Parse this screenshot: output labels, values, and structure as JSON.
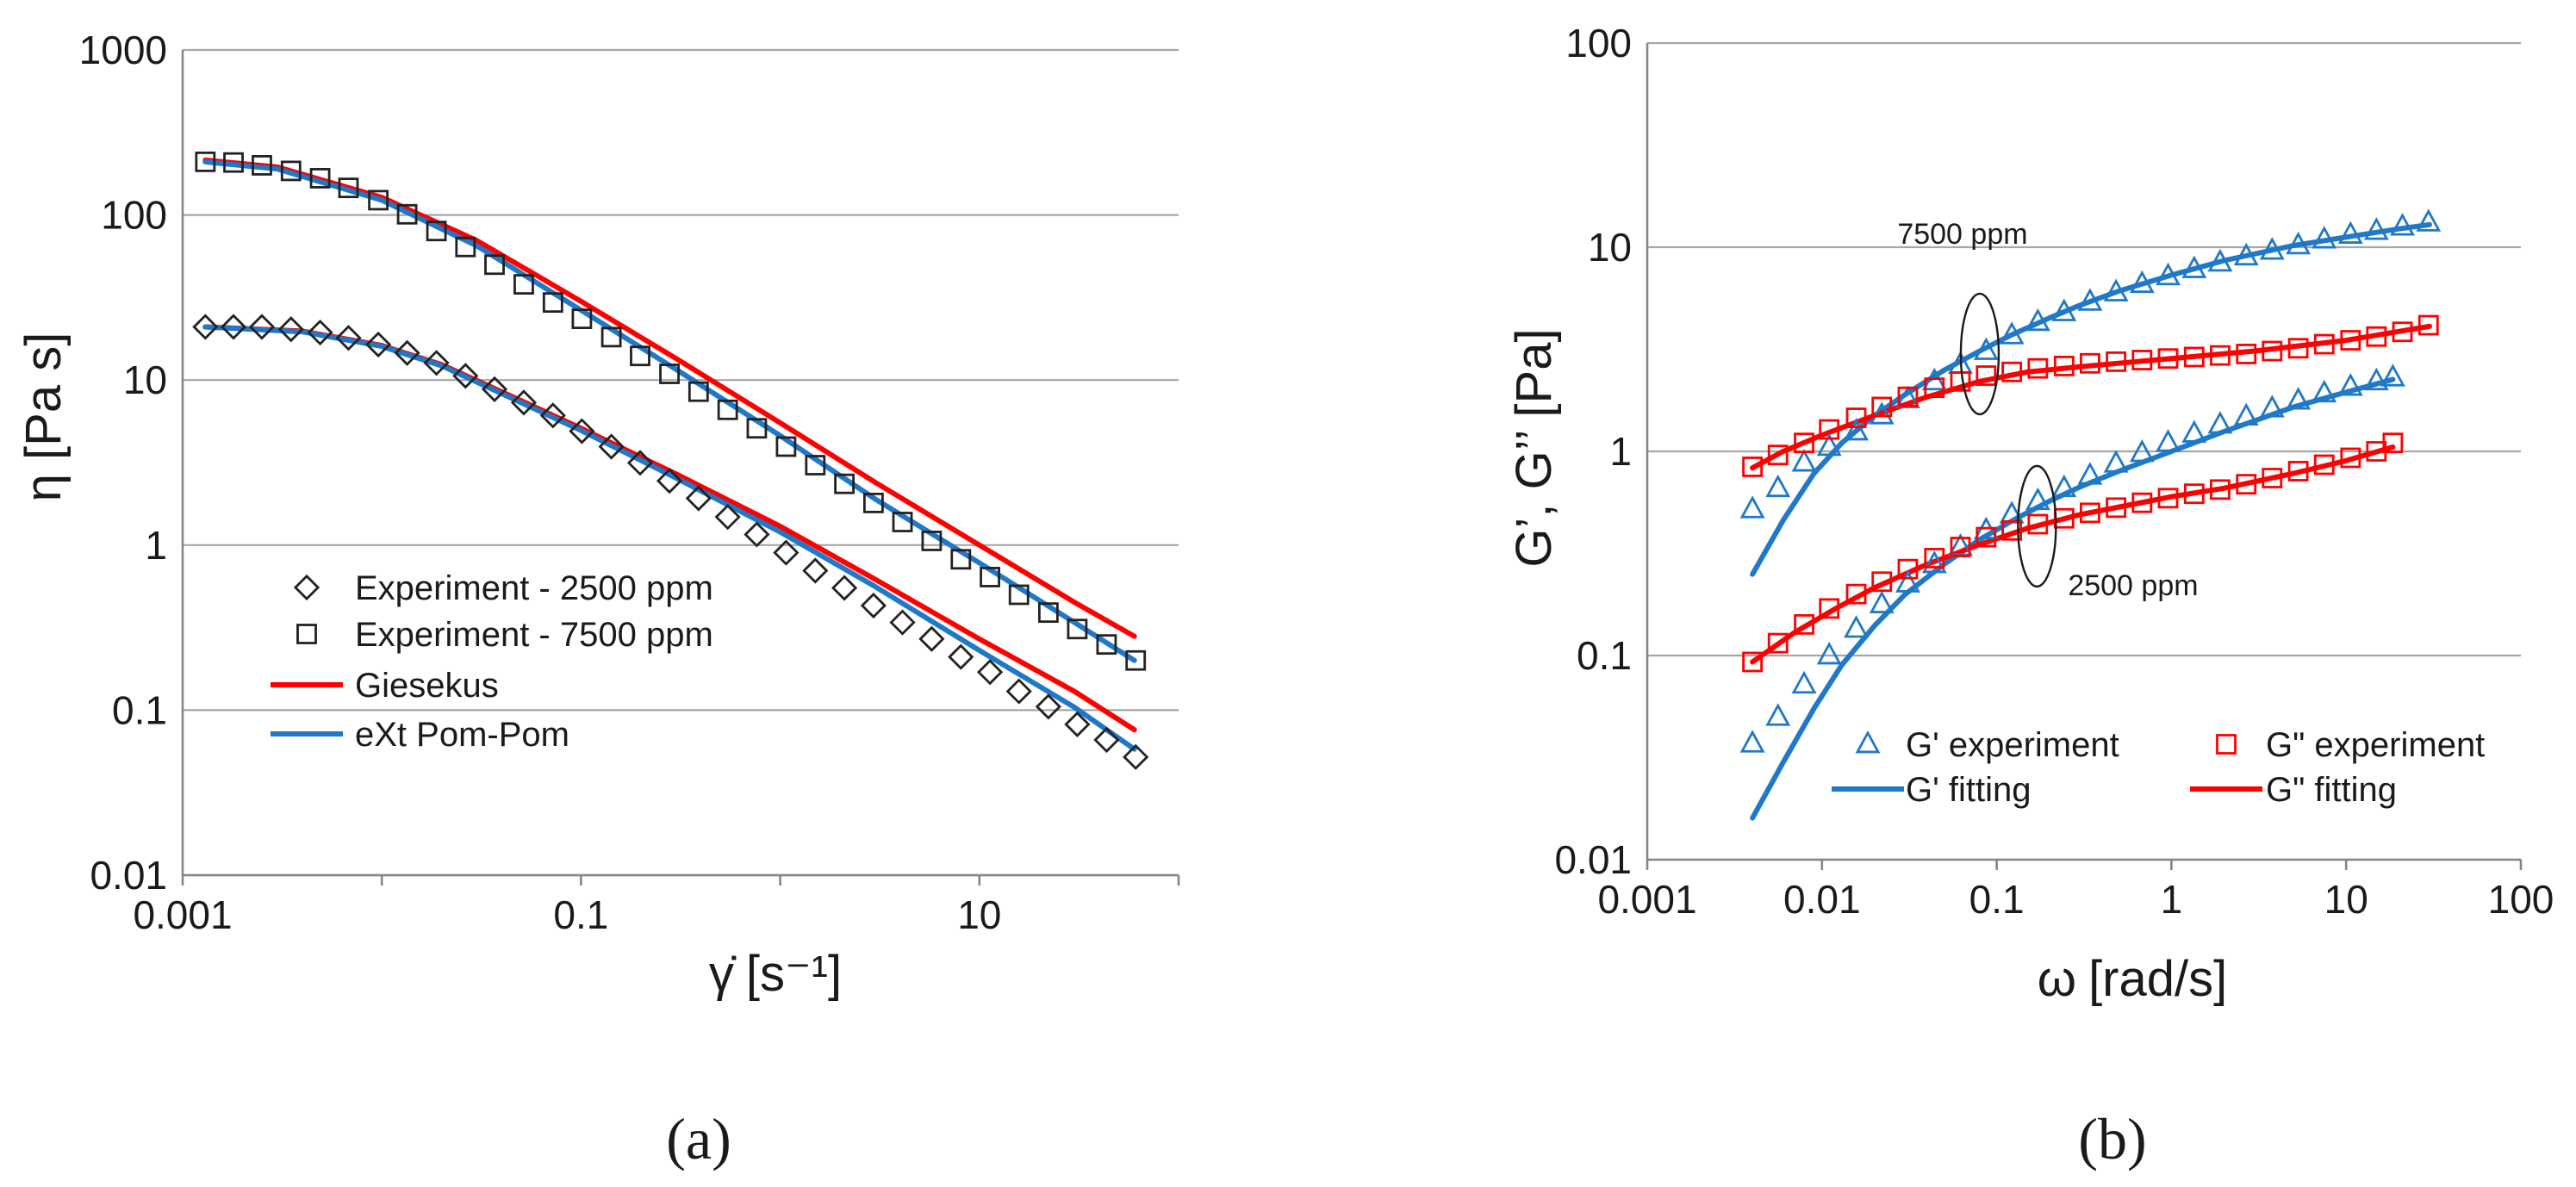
{
  "chart_data": [
    {
      "id": "a",
      "type": "scatter",
      "panel_label": "(a)",
      "xlabel_symbol": "γ̇",
      "xlabel_unit": "[s⁻¹]",
      "ylabel": "η [Pa s]",
      "x_scale": "log",
      "y_scale": "log",
      "xlim": [
        0.001,
        100
      ],
      "ylim": [
        0.01,
        1000
      ],
      "x_ticks": [
        0.001,
        0.1,
        10
      ],
      "x_tick_labels": [
        "0.001",
        "0.1",
        "10"
      ],
      "y_ticks": [
        1000,
        100,
        10,
        1,
        0.1,
        0.01
      ],
      "y_tick_labels": [
        "1000",
        "100",
        "10",
        "1",
        "0.1",
        "0.01"
      ],
      "grid": "horizontal",
      "legend_position": "bottom-left",
      "legend": [
        {
          "label": "Experiment - 2500 ppm",
          "marker": "diamond",
          "color": "#222222"
        },
        {
          "label": "Experiment - 7500 ppm",
          "marker": "square",
          "color": "#222222"
        },
        {
          "label": "Giesekus",
          "line": true,
          "color": "#ff0000"
        },
        {
          "label": "eXt Pom-Pom",
          "line": true,
          "color": "#1f78c8"
        }
      ],
      "series": [
        {
          "name": "Experiment - 2500 ppm",
          "kind": "points",
          "marker": "diamond",
          "color": "#222222",
          "x": [
            0.0013,
            0.0018,
            0.0025,
            0.0035,
            0.0049,
            0.0068,
            0.0096,
            0.0134,
            0.0188,
            0.0263,
            0.0368,
            0.0516,
            0.0723,
            0.101,
            0.142,
            0.198,
            0.278,
            0.389,
            0.545,
            0.763,
            1.07,
            1.5,
            2.1,
            2.94,
            4.11,
            5.76,
            8.07,
            11.3,
            15.8,
            22.2,
            31.0,
            43.5,
            60.9
          ],
          "y": [
            21,
            21,
            21,
            20.3,
            19.4,
            18,
            16.4,
            14.6,
            12.7,
            10.6,
            8.8,
            7.3,
            6.1,
            4.9,
            3.95,
            3.15,
            2.45,
            1.92,
            1.48,
            1.16,
            0.9,
            0.7,
            0.55,
            0.43,
            0.34,
            0.27,
            0.21,
            0.17,
            0.13,
            0.105,
            0.082,
            0.066,
            0.052
          ]
        },
        {
          "name": "Experiment - 7500 ppm",
          "kind": "points",
          "marker": "square",
          "color": "#222222",
          "x": [
            0.0013,
            0.0018,
            0.0025,
            0.0035,
            0.0049,
            0.0068,
            0.0096,
            0.0134,
            0.0188,
            0.0263,
            0.0368,
            0.0516,
            0.0723,
            0.101,
            0.142,
            0.198,
            0.278,
            0.389,
            0.545,
            0.763,
            1.07,
            1.5,
            2.1,
            2.94,
            4.11,
            5.76,
            8.07,
            11.3,
            15.8,
            22.2,
            31.0,
            43.5,
            60.9
          ],
          "y": [
            210,
            208,
            200,
            185,
            167,
            146,
            123,
            101,
            80,
            64,
            50,
            38,
            29.5,
            23.5,
            18.2,
            14,
            10.9,
            8.5,
            6.6,
            5.1,
            3.95,
            3.05,
            2.35,
            1.8,
            1.38,
            1.06,
            0.82,
            0.64,
            0.5,
            0.39,
            0.31,
            0.25,
            0.2
          ]
        },
        {
          "name": "Giesekus 2500 ppm",
          "kind": "line",
          "color": "#ff0000",
          "x": [
            0.0013,
            0.004,
            0.01,
            0.02,
            0.05,
            0.1,
            0.3,
            1,
            3,
            10,
            30,
            60
          ],
          "y": [
            21,
            19.8,
            16.2,
            12.4,
            7.5,
            5.1,
            2.7,
            1.3,
            0.62,
            0.27,
            0.13,
            0.076
          ]
        },
        {
          "name": "eXt Pom-Pom 2500 ppm",
          "kind": "line",
          "color": "#1f78c8",
          "x": [
            0.0013,
            0.004,
            0.01,
            0.02,
            0.05,
            0.1,
            0.3,
            1,
            3,
            10,
            30,
            60
          ],
          "y": [
            21,
            19.6,
            16,
            12.2,
            7.3,
            4.95,
            2.55,
            1.2,
            0.56,
            0.23,
            0.104,
            0.058
          ]
        },
        {
          "name": "Giesekus 7500 ppm",
          "kind": "line",
          "color": "#ff0000",
          "x": [
            0.0013,
            0.003,
            0.01,
            0.03,
            0.1,
            0.3,
            1,
            3,
            10,
            30,
            60
          ],
          "y": [
            215,
            195,
            128,
            70,
            30,
            13.5,
            5.5,
            2.4,
            1.0,
            0.45,
            0.28
          ]
        },
        {
          "name": "eXt Pom-Pom 7500 ppm",
          "kind": "line",
          "color": "#1f78c8",
          "x": [
            0.0013,
            0.003,
            0.01,
            0.03,
            0.1,
            0.3,
            1,
            3,
            10,
            30,
            60
          ],
          "y": [
            210,
            190,
            123,
            65,
            26.5,
            11.6,
            4.6,
            1.9,
            0.78,
            0.34,
            0.2
          ]
        }
      ]
    },
    {
      "id": "b",
      "type": "scatter",
      "panel_label": "(b)",
      "xlabel_symbol": "ω",
      "xlabel_unit": "[rad/s]",
      "ylabel": "G’, G’’ [Pa]",
      "x_scale": "log",
      "y_scale": "log",
      "xlim": [
        0.001,
        100
      ],
      "ylim": [
        0.01,
        100
      ],
      "x_ticks": [
        0.001,
        0.01,
        0.1,
        1,
        10,
        100
      ],
      "x_tick_labels": [
        "0.001",
        "0.01",
        "0.1",
        "1",
        "10",
        "100"
      ],
      "y_ticks": [
        100,
        10,
        1,
        0.1,
        0.01
      ],
      "y_tick_labels": [
        "100",
        "10",
        "1",
        "0.1",
        "0.01"
      ],
      "grid": "horizontal",
      "legend_position": "bottom-center",
      "legend": [
        {
          "label": "G' experiment",
          "marker": "triangle",
          "color": "#1f78c8"
        },
        {
          "label": "G\" experiment",
          "marker": "square",
          "color": "#ff0000"
        },
        {
          "label": "G' fitting",
          "line": true,
          "color": "#1f78c8"
        },
        {
          "label": "G\" fitting",
          "line": true,
          "color": "#ff0000"
        }
      ],
      "annotations": [
        {
          "label": "7500 ppm",
          "x": 0.08,
          "y": 3.0
        },
        {
          "label": "2500 ppm",
          "x": 0.17,
          "y": 0.43
        }
      ],
      "series": [
        {
          "name": "G' experiment 7500 ppm",
          "kind": "points",
          "marker": "triangle",
          "color": "#1f78c8",
          "x": [
            0.004,
            0.0056,
            0.0079,
            0.011,
            0.0157,
            0.022,
            0.031,
            0.044,
            0.062,
            0.087,
            0.122,
            0.172,
            0.243,
            0.342,
            0.482,
            0.679,
            0.957,
            1.35,
            1.9,
            2.68,
            3.77,
            5.32,
            7.49,
            10.6,
            14.9,
            21.0,
            29.6
          ],
          "y": [
            0.52,
            0.66,
            0.88,
            1.05,
            1.25,
            1.5,
            1.8,
            2.2,
            2.65,
            3.1,
            3.7,
            4.3,
            4.8,
            5.4,
            6.0,
            6.6,
            7.2,
            7.8,
            8.4,
            9.0,
            9.6,
            10.2,
            10.9,
            11.5,
            12.0,
            12.6,
            13.2
          ]
        },
        {
          "name": "G\" experiment 7500 ppm",
          "kind": "points",
          "marker": "square",
          "color": "#ff0000",
          "x": [
            0.004,
            0.0056,
            0.0079,
            0.011,
            0.0157,
            0.022,
            0.031,
            0.044,
            0.062,
            0.087,
            0.122,
            0.172,
            0.243,
            0.342,
            0.482,
            0.679,
            0.957,
            1.35,
            1.9,
            2.68,
            3.77,
            5.32,
            7.49,
            10.6,
            14.9,
            21.0,
            29.6
          ],
          "y": [
            0.84,
            0.96,
            1.1,
            1.28,
            1.46,
            1.65,
            1.85,
            2.05,
            2.2,
            2.35,
            2.45,
            2.55,
            2.62,
            2.7,
            2.75,
            2.8,
            2.85,
            2.9,
            2.95,
            3.0,
            3.1,
            3.2,
            3.35,
            3.5,
            3.65,
            3.85,
            4.15
          ]
        },
        {
          "name": "G' experiment 2500 ppm",
          "kind": "points",
          "marker": "triangle",
          "color": "#1f78c8",
          "x": [
            0.004,
            0.0056,
            0.0079,
            0.011,
            0.0157,
            0.022,
            0.031,
            0.044,
            0.062,
            0.087,
            0.122,
            0.172,
            0.243,
            0.342,
            0.482,
            0.679,
            0.957,
            1.35,
            1.9,
            2.68,
            3.77,
            5.32,
            7.49,
            10.6,
            14.9,
            18.5
          ],
          "y": [
            0.037,
            0.05,
            0.072,
            0.1,
            0.135,
            0.178,
            0.225,
            0.28,
            0.34,
            0.41,
            0.49,
            0.57,
            0.66,
            0.76,
            0.87,
            0.98,
            1.1,
            1.22,
            1.35,
            1.48,
            1.62,
            1.77,
            1.92,
            2.07,
            2.2,
            2.3
          ]
        },
        {
          "name": "G\" experiment 2500 ppm",
          "kind": "points",
          "marker": "square",
          "color": "#ff0000",
          "x": [
            0.004,
            0.0056,
            0.0079,
            0.011,
            0.0157,
            0.022,
            0.031,
            0.044,
            0.062,
            0.087,
            0.122,
            0.172,
            0.243,
            0.342,
            0.482,
            0.679,
            0.957,
            1.35,
            1.9,
            2.68,
            3.77,
            5.32,
            7.49,
            10.6,
            14.9,
            18.5
          ],
          "y": [
            0.093,
            0.115,
            0.142,
            0.17,
            0.2,
            0.23,
            0.265,
            0.3,
            0.34,
            0.38,
            0.41,
            0.44,
            0.47,
            0.5,
            0.53,
            0.56,
            0.59,
            0.62,
            0.65,
            0.69,
            0.74,
            0.8,
            0.86,
            0.93,
            1.0,
            1.1
          ]
        },
        {
          "name": "G' fitting 7500 ppm",
          "kind": "line",
          "color": "#1f78c8",
          "x": [
            0.004,
            0.006,
            0.009,
            0.013,
            0.02,
            0.03,
            0.05,
            0.08,
            0.12,
            0.2,
            0.3,
            0.5,
            1,
            2,
            5,
            10,
            20,
            30
          ],
          "y": [
            0.25,
            0.46,
            0.78,
            1.1,
            1.5,
            1.9,
            2.5,
            3.1,
            3.7,
            4.5,
            5.2,
            6.1,
            7.3,
            8.6,
            10.2,
            11.2,
            12.3,
            12.9
          ]
        },
        {
          "name": "G\" fitting 7500 ppm",
          "kind": "line",
          "color": "#ff0000",
          "x": [
            0.004,
            0.006,
            0.01,
            0.02,
            0.04,
            0.08,
            0.15,
            0.3,
            1,
            3,
            10,
            30
          ],
          "y": [
            0.83,
            1.0,
            1.2,
            1.5,
            1.85,
            2.2,
            2.45,
            2.6,
            2.85,
            3.1,
            3.5,
            4.1
          ]
        },
        {
          "name": "G' fitting 2500 ppm",
          "kind": "line",
          "color": "#1f78c8",
          "x": [
            0.004,
            0.006,
            0.009,
            0.013,
            0.02,
            0.03,
            0.05,
            0.08,
            0.13,
            0.2,
            0.3,
            0.5,
            1,
            2,
            5,
            10,
            18.5
          ],
          "y": [
            0.016,
            0.03,
            0.055,
            0.09,
            0.14,
            0.2,
            0.28,
            0.37,
            0.47,
            0.57,
            0.67,
            0.8,
            1.0,
            1.25,
            1.65,
            1.95,
            2.25
          ]
        },
        {
          "name": "G\" fitting 2500 ppm",
          "kind": "line",
          "color": "#ff0000",
          "x": [
            0.004,
            0.007,
            0.012,
            0.02,
            0.04,
            0.08,
            0.15,
            0.3,
            0.6,
            1,
            2,
            5,
            10,
            18.5
          ],
          "y": [
            0.093,
            0.13,
            0.17,
            0.215,
            0.28,
            0.35,
            0.42,
            0.49,
            0.55,
            0.6,
            0.66,
            0.78,
            0.9,
            1.05
          ]
        }
      ]
    }
  ]
}
